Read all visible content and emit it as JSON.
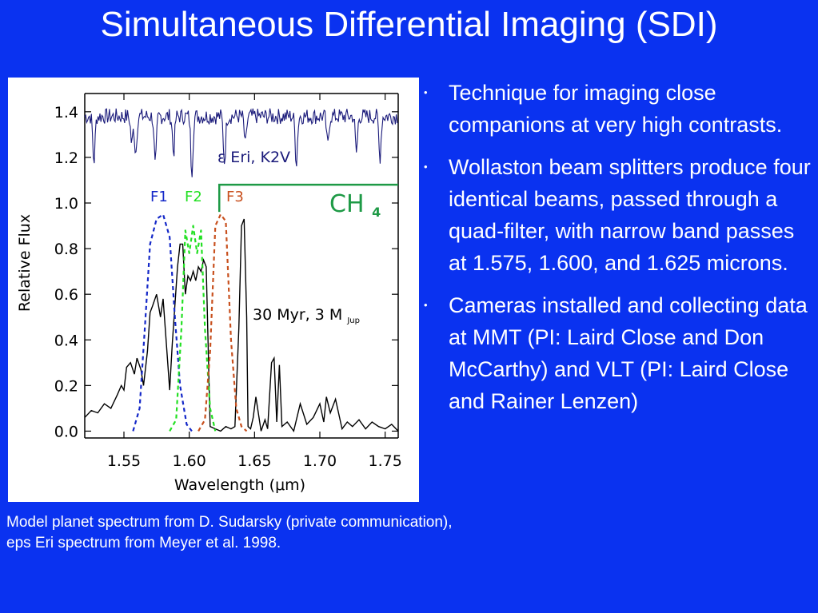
{
  "slide": {
    "title": "Simultaneous Differential Imaging (SDI)",
    "caption": "Model planet spectrum from D. Sudarsky (private communication), eps Eri spectrum from Meyer et al. 1998.",
    "bullets": [
      "Technique for imaging close companions at very high contrasts.",
      "Wollaston beam splitters produce four identical beams, passed through a quad-filter, with narrow band passes at 1.575, 1.600, and 1.625 microns.",
      "Cameras installed and collecting data at MMT (PI: Laird Close and Don McCarthy) and VLT (PI: Laird Close and Rainer Lenzen)"
    ],
    "bullet_glyph": "•"
  },
  "colors": {
    "background": "#0A32F0",
    "star_spectrum": "#1A1A7A",
    "planet_spectrum": "#000000",
    "F1": "#1428C8",
    "F2": "#22E022",
    "F3": "#C8501E",
    "CH4": "#1E9A46"
  },
  "chart_data": {
    "type": "line",
    "xlabel": "Wavelength (μm)",
    "ylabel": "Relative Flux",
    "xlim": [
      1.52,
      1.76
    ],
    "ylim": [
      -0.03,
      1.48
    ],
    "xticks": [
      1.55,
      1.6,
      1.65,
      1.7,
      1.75
    ],
    "xtick_labels": [
      "1.55",
      "1.60",
      "1.65",
      "1.70",
      "1.75"
    ],
    "yticks": [
      0.0,
      0.2,
      0.4,
      0.6,
      0.8,
      1.0,
      1.2,
      1.4
    ],
    "ytick_labels": [
      "0.0",
      "0.2",
      "0.4",
      "0.6",
      "0.8",
      "1.0",
      "1.2",
      "1.4"
    ],
    "annotations": {
      "star": "ε Eri, K2V",
      "planet": "30 Myr, 3 M",
      "planet_sub": "Jup",
      "f1": "F1",
      "f2": "F2",
      "f3": "F3",
      "ch4": "CH",
      "ch4_sub": "4"
    },
    "ch4_band": {
      "x_start": 1.623,
      "y": 1.08
    },
    "star_spectrum": {
      "x_start": 1.52,
      "x_end": 1.76,
      "baseline": 1.38,
      "dips": [
        {
          "x": 1.527,
          "y": 1.18
        },
        {
          "x": 1.556,
          "y": 1.26
        },
        {
          "x": 1.559,
          "y": 1.22
        },
        {
          "x": 1.574,
          "y": 1.16
        },
        {
          "x": 1.588,
          "y": 1.22
        },
        {
          "x": 1.602,
          "y": 1.14
        },
        {
          "x": 1.627,
          "y": 1.18
        },
        {
          "x": 1.643,
          "y": 1.25
        },
        {
          "x": 1.682,
          "y": 1.18
        },
        {
          "x": 1.706,
          "y": 1.25
        },
        {
          "x": 1.728,
          "y": 1.22
        },
        {
          "x": 1.746,
          "y": 1.2
        }
      ]
    },
    "planet_spectrum": {
      "x": [
        1.52,
        1.525,
        1.53,
        1.535,
        1.54,
        1.545,
        1.548,
        1.55,
        1.552,
        1.555,
        1.558,
        1.56,
        1.563,
        1.565,
        1.568,
        1.57,
        1.572,
        1.575,
        1.578,
        1.58,
        1.582,
        1.585,
        1.587,
        1.589,
        1.591,
        1.593,
        1.595,
        1.597,
        1.599,
        1.601,
        1.603,
        1.605,
        1.607,
        1.609,
        1.611,
        1.613,
        1.616,
        1.62,
        1.624,
        1.628,
        1.632,
        1.635,
        1.638,
        1.64,
        1.642,
        1.644,
        1.645,
        1.647,
        1.649,
        1.651,
        1.655,
        1.658,
        1.66,
        1.663,
        1.665,
        1.667,
        1.669,
        1.671,
        1.675,
        1.68,
        1.685,
        1.69,
        1.695,
        1.7,
        1.703,
        1.705,
        1.708,
        1.712,
        1.717,
        1.721,
        1.725,
        1.73,
        1.735,
        1.74,
        1.745,
        1.75,
        1.755,
        1.76
      ],
      "y": [
        0.06,
        0.09,
        0.08,
        0.12,
        0.1,
        0.16,
        0.2,
        0.18,
        0.28,
        0.3,
        0.25,
        0.32,
        0.27,
        0.2,
        0.35,
        0.52,
        0.55,
        0.6,
        0.5,
        0.58,
        0.42,
        0.18,
        0.38,
        0.55,
        0.72,
        0.82,
        0.82,
        0.6,
        0.68,
        0.66,
        0.7,
        0.66,
        0.72,
        0.7,
        0.75,
        0.72,
        0.02,
        0.01,
        0.0,
        0.02,
        0.01,
        0.02,
        0.45,
        0.9,
        0.93,
        0.5,
        0.02,
        0.01,
        0.06,
        0.15,
        0.0,
        0.05,
        0.01,
        0.3,
        0.32,
        0.04,
        0.29,
        0.02,
        0.04,
        0.0,
        0.12,
        0.03,
        0.06,
        0.12,
        0.04,
        0.15,
        0.08,
        0.14,
        0.01,
        0.04,
        0.02,
        0.05,
        0.01,
        0.04,
        0.02,
        0.01,
        0.03,
        0.0
      ]
    },
    "filters": [
      {
        "name": "F1",
        "x": [
          1.557,
          1.562,
          1.566,
          1.57,
          1.575,
          1.58,
          1.585,
          1.589,
          1.593,
          1.598,
          1.602
        ],
        "y": [
          0.0,
          0.1,
          0.45,
          0.82,
          0.93,
          0.95,
          0.85,
          0.5,
          0.2,
          0.03,
          0.0
        ]
      },
      {
        "name": "F2",
        "x": [
          1.585,
          1.59,
          1.594,
          1.597,
          1.6,
          1.603,
          1.606,
          1.609,
          1.612,
          1.616,
          1.62
        ],
        "y": [
          0.0,
          0.05,
          0.45,
          0.88,
          0.78,
          0.9,
          0.78,
          0.88,
          0.45,
          0.1,
          0.0
        ]
      },
      {
        "name": "F3",
        "x": [
          1.607,
          1.612,
          1.616,
          1.62,
          1.624,
          1.628,
          1.632,
          1.636,
          1.64,
          1.644
        ],
        "y": [
          0.0,
          0.05,
          0.35,
          0.9,
          0.95,
          0.92,
          0.4,
          0.1,
          0.02,
          0.0
        ]
      }
    ]
  }
}
